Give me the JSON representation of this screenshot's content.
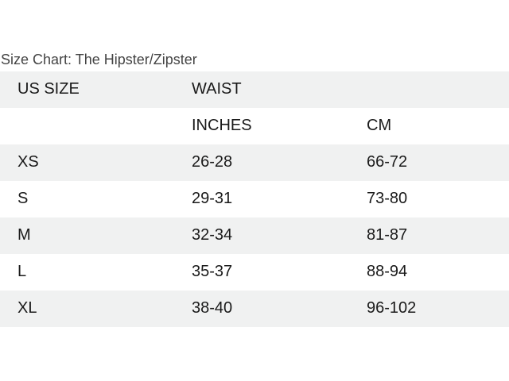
{
  "title": "Size Chart: The Hipster/Zipster",
  "header": {
    "size": "US SIZE",
    "waist": "WAIST"
  },
  "subheader": {
    "inches": "INCHES",
    "cm": "CM"
  },
  "rows": [
    {
      "size": "XS",
      "inches": "26-28",
      "cm": "66-72"
    },
    {
      "size": "S",
      "inches": "29-31",
      "cm": "73-80"
    },
    {
      "size": "M",
      "inches": "32-34",
      "cm": "81-87"
    },
    {
      "size": "L",
      "inches": "35-37",
      "cm": "88-94"
    },
    {
      "size": "XL",
      "inches": "38-40",
      "cm": "96-102"
    }
  ]
}
